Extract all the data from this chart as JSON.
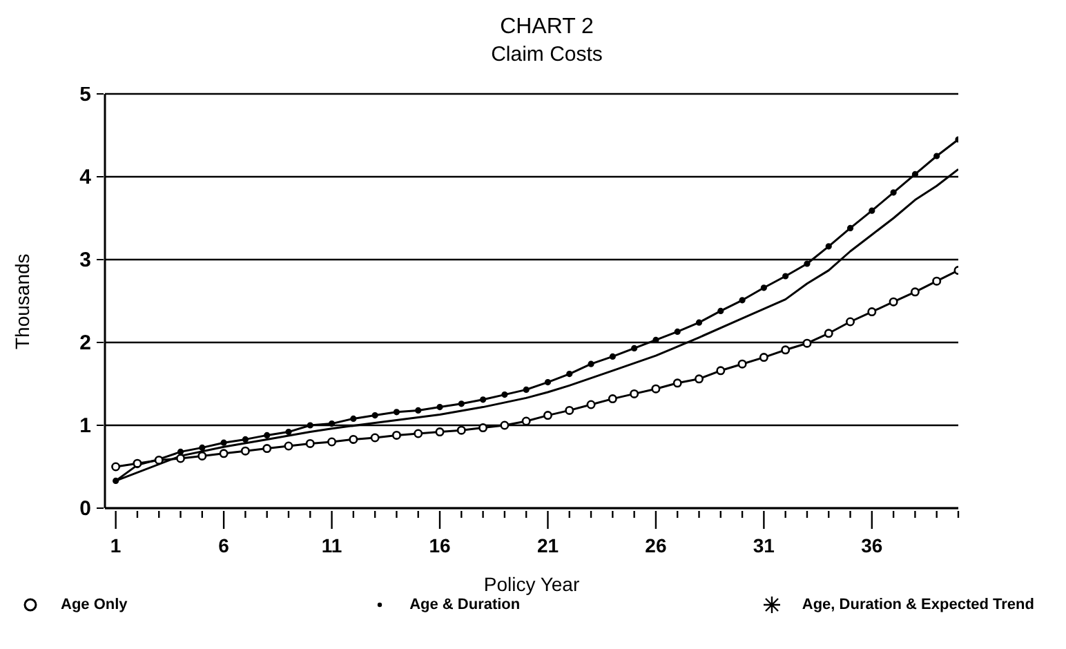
{
  "chart_data": {
    "type": "line",
    "title": "CHART 2",
    "subtitle": "Claim Costs",
    "xlabel": "Policy Year",
    "ylabel": "Thousands",
    "xlim": [
      0.5,
      40
    ],
    "ylim": [
      0,
      5
    ],
    "yticks": [
      0,
      1,
      2,
      3,
      4,
      5
    ],
    "xticks": [
      1,
      {
        "value": 2,
        "label": null
      },
      {
        "value": 3,
        "label": null
      },
      {
        "value": 4,
        "label": null
      },
      {
        "value": 5,
        "label": null
      },
      6,
      {
        "value": 7,
        "label": null
      },
      {
        "value": 8,
        "label": null
      },
      {
        "value": 9,
        "label": null
      },
      {
        "value": 10,
        "label": null
      },
      11,
      {
        "value": 12,
        "label": null
      },
      {
        "value": 13,
        "label": null
      },
      {
        "value": 14,
        "label": null
      },
      {
        "value": 15,
        "label": null
      },
      16,
      {
        "value": 17,
        "label": null
      },
      {
        "value": 18,
        "label": null
      },
      {
        "value": 19,
        "label": null
      },
      {
        "value": 20,
        "label": null
      },
      21,
      {
        "value": 22,
        "label": null
      },
      {
        "value": 23,
        "label": null
      },
      {
        "value": 24,
        "label": null
      },
      {
        "value": 25,
        "label": null
      },
      26,
      {
        "value": 27,
        "label": null
      },
      {
        "value": 28,
        "label": null
      },
      {
        "value": 29,
        "label": null
      },
      {
        "value": 30,
        "label": null
      },
      31,
      {
        "value": 32,
        "label": null
      },
      {
        "value": 33,
        "label": null
      },
      {
        "value": 34,
        "label": null
      },
      {
        "value": 35,
        "label": null
      },
      36,
      {
        "value": 37,
        "label": null
      },
      {
        "value": 38,
        "label": null
      },
      {
        "value": 39,
        "label": null
      },
      {
        "value": 40,
        "label": null
      }
    ],
    "grid": "y",
    "legend": "bottom",
    "series": [
      {
        "name": "Age Only",
        "color": "#000000",
        "marker": "circle",
        "x": [
          1,
          2,
          3,
          4,
          5,
          6,
          7,
          8,
          9,
          10,
          11,
          12,
          13,
          14,
          15,
          16,
          17,
          18,
          19,
          20,
          21,
          22,
          23,
          24,
          25,
          26,
          27,
          28,
          29,
          30,
          31,
          32,
          33,
          34,
          35,
          36,
          37,
          38,
          39,
          40
        ],
        "values": [
          0.5,
          0.54,
          0.58,
          0.6,
          0.63,
          0.66,
          0.69,
          0.72,
          0.75,
          0.78,
          0.8,
          0.83,
          0.85,
          0.88,
          0.9,
          0.92,
          0.94,
          0.97,
          1.0,
          1.05,
          1.12,
          1.18,
          1.25,
          1.32,
          1.38,
          1.44,
          1.51,
          1.56,
          1.66,
          1.74,
          1.82,
          1.91,
          1.99,
          2.11,
          2.25,
          2.37,
          2.49,
          2.61,
          2.74,
          2.87
        ]
      },
      {
        "name": "Age & Duration",
        "color": "#000000",
        "marker": "circle",
        "x": [
          1,
          2,
          3,
          4,
          5,
          6,
          7,
          8,
          9,
          10,
          11,
          12,
          13,
          14,
          15,
          16,
          17,
          18,
          19,
          20,
          21,
          22,
          23,
          24,
          25,
          26,
          27,
          28,
          29,
          30,
          31,
          32,
          33,
          34,
          35,
          36,
          37,
          38,
          39,
          40
        ],
        "values": [
          0.33,
          0.52,
          0.59,
          0.68,
          0.73,
          0.79,
          0.83,
          0.88,
          0.92,
          1.0,
          1.02,
          1.08,
          1.12,
          1.16,
          1.18,
          1.22,
          1.26,
          1.31,
          1.37,
          1.43,
          1.52,
          1.62,
          1.74,
          1.83,
          1.93,
          2.03,
          2.13,
          2.24,
          2.38,
          2.51,
          2.66,
          2.8,
          2.95,
          3.16,
          3.38,
          3.59,
          3.81,
          4.03,
          4.25,
          4.45
        ]
      },
      {
        "name": "Age, Duration & Expected Trend",
        "color": "#000000",
        "marker": "none",
        "x": [
          1,
          4,
          6,
          8,
          10,
          11,
          13,
          16,
          18,
          20,
          21,
          22,
          24,
          26,
          28,
          30,
          32,
          33,
          34,
          35,
          36,
          37,
          38,
          39,
          40
        ],
        "values": [
          0.33,
          0.63,
          0.74,
          0.83,
          0.92,
          0.96,
          1.03,
          1.13,
          1.22,
          1.33,
          1.4,
          1.48,
          1.66,
          1.84,
          2.06,
          2.29,
          2.52,
          2.71,
          2.87,
          3.1,
          3.3,
          3.5,
          3.72,
          3.89,
          4.09
        ]
      }
    ]
  }
}
